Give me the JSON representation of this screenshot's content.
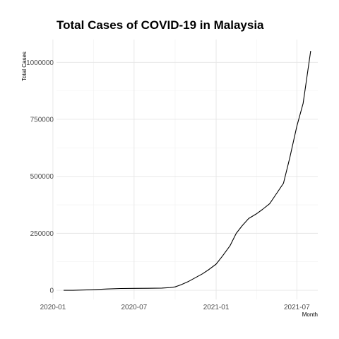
{
  "chart_data": {
    "type": "line",
    "title": "Total Cases of COVID-19 in Malaysia",
    "xlabel": "Month",
    "ylabel": "Total Cases",
    "x_ticks": [
      "2020-01",
      "2020-07",
      "2021-01",
      "2021-07"
    ],
    "y_ticks": [
      0,
      250000,
      500000,
      750000,
      1000000
    ],
    "ylim": [
      -40000,
      1100000
    ],
    "grid": true,
    "legend": "none",
    "line_color": "#000000",
    "series": [
      {
        "x": [
          "2020-01-25",
          "2020-02-15",
          "2020-03-10",
          "2020-03-25",
          "2020-04-10",
          "2020-05-01",
          "2020-06-01",
          "2020-07-01",
          "2020-08-01",
          "2020-09-01",
          "2020-09-20",
          "2020-10-01",
          "2020-10-15",
          "2020-11-01",
          "2020-11-15",
          "2020-12-01",
          "2020-12-15",
          "2021-01-01",
          "2021-01-15",
          "2021-02-01",
          "2021-02-15",
          "2021-03-01",
          "2021-03-15",
          "2021-04-01",
          "2021-04-15",
          "2021-05-01",
          "2021-05-15",
          "2021-06-01",
          "2021-06-15",
          "2021-07-01",
          "2021-07-15",
          "2021-08-01"
        ],
        "values": [
          0,
          20,
          1500,
          2300,
          4000,
          6000,
          8000,
          8600,
          9000,
          10000,
          12000,
          15000,
          25000,
          40000,
          55000,
          72000,
          90000,
          115000,
          150000,
          195000,
          250000,
          285000,
          315000,
          335000,
          355000,
          380000,
          420000,
          470000,
          580000,
          720000,
          820000,
          1050000
        ]
      }
    ]
  }
}
